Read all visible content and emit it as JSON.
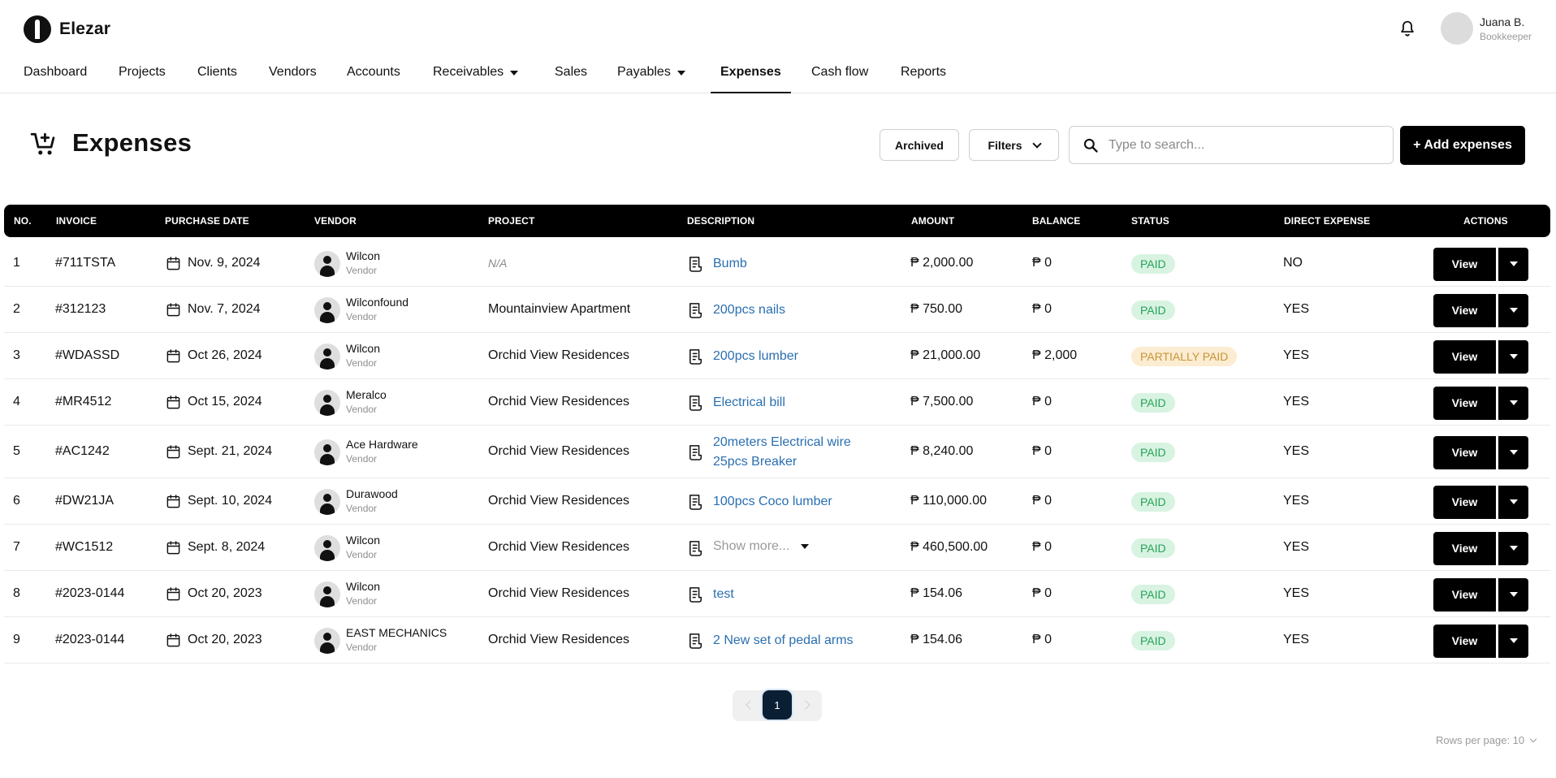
{
  "app": {
    "name": "Elezar"
  },
  "user": {
    "name": "Juana B.",
    "role": "Bookkeeper"
  },
  "nav": [
    {
      "label": "Dashboard"
    },
    {
      "label": "Projects"
    },
    {
      "label": "Clients"
    },
    {
      "label": "Vendors"
    },
    {
      "label": "Accounts"
    },
    {
      "label": "Receivables"
    },
    {
      "label": "Sales"
    },
    {
      "label": "Payables"
    },
    {
      "label": "Expenses"
    },
    {
      "label": "Cash flow"
    },
    {
      "label": "Reports"
    }
  ],
  "page": {
    "title": "Expenses",
    "archived_label": "Archived",
    "filters_label": "Filters",
    "search_placeholder": "Type to search...",
    "add_label": "+ Add expenses"
  },
  "table": {
    "columns": [
      "NO.",
      "INVOICE",
      "PURCHASE DATE",
      "VENDOR",
      "PROJECT",
      "DESCRIPTION",
      "AMOUNT",
      "BALANCE",
      "STATUS",
      "DIRECT EXPENSE",
      "ACTIONS"
    ],
    "view_label": "View",
    "rows": [
      {
        "no": "1",
        "invoice": "#711TSTA",
        "date": "Nov. 9, 2024",
        "vendor": "Wilcon",
        "vendor_role": "Vendor",
        "project": "N/A",
        "description": "Bumb",
        "amount": "₱ 2,000.00",
        "balance": "₱ 0",
        "status": "PAID",
        "direct": "NO"
      },
      {
        "no": "2",
        "invoice": "#312123",
        "date": "Nov. 7, 2024",
        "vendor": "Wilconfound",
        "vendor_role": "Vendor",
        "project": "Mountainview Apartment",
        "description": "200pcs nails",
        "amount": "₱ 750.00",
        "balance": "₱ 0",
        "status": "PAID",
        "direct": "YES"
      },
      {
        "no": "3",
        "invoice": "#WDASSD",
        "date": "Oct 26, 2024",
        "vendor": "Wilcon",
        "vendor_role": "Vendor",
        "project": "Orchid View Residences",
        "description": "200pcs lumber",
        "amount": "₱ 21,000.00",
        "balance": "₱ 2,000",
        "status": "PARTIALLY PAID",
        "direct": "YES"
      },
      {
        "no": "4",
        "invoice": "#MR4512",
        "date": "Oct 15, 2024",
        "vendor": "Meralco",
        "vendor_role": "Vendor",
        "project": "Orchid View Residences",
        "description": "Electrical bill",
        "amount": "₱ 7,500.00",
        "balance": "₱ 0",
        "status": "PAID",
        "direct": "YES"
      },
      {
        "no": "5",
        "invoice": "#AC1242",
        "date": "Sept. 21, 2024",
        "vendor": "Ace Hardware",
        "vendor_role": "Vendor",
        "project": "Orchid View Residences",
        "description": "20meters Electrical wire",
        "description2": "25pcs Breaker",
        "amount": "₱ 8,240.00",
        "balance": "₱ 0",
        "status": "PAID",
        "direct": "YES"
      },
      {
        "no": "6",
        "invoice": "#DW21JA",
        "date": "Sept. 10, 2024",
        "vendor": "Durawood",
        "vendor_role": "Vendor",
        "project": "Orchid View Residences",
        "description": "100pcs Coco lumber",
        "amount": "₱ 110,000.00",
        "balance": "₱ 0",
        "status": "PAID",
        "direct": "YES"
      },
      {
        "no": "7",
        "invoice": "#WC1512",
        "date": "Sept. 8, 2024",
        "vendor": "Wilcon",
        "vendor_role": "Vendor",
        "project": "Orchid View Residences",
        "description": "Show more...",
        "amount": "₱ 460,500.00",
        "balance": "₱ 0",
        "status": "PAID",
        "direct": "YES"
      },
      {
        "no": "8",
        "invoice": "#2023-0144",
        "date": "Oct 20, 2023",
        "vendor": "Wilcon",
        "vendor_role": "Vendor",
        "project": "Orchid View Residences",
        "description": "test",
        "amount": "₱ 154.06",
        "balance": "₱ 0",
        "status": "PAID",
        "direct": "YES"
      },
      {
        "no": "9",
        "invoice": "#2023-0144",
        "date": "Oct 20, 2023",
        "vendor": "EAST MECHANICS",
        "vendor_role": "Vendor",
        "project": "Orchid View Residences",
        "description": "2 New set of pedal arms",
        "amount": "₱ 154.06",
        "balance": "₱ 0",
        "status": "PAID",
        "direct": "YES"
      }
    ]
  },
  "pagination": {
    "current": "1",
    "rows_per_page_label": "Rows per page: 10"
  }
}
